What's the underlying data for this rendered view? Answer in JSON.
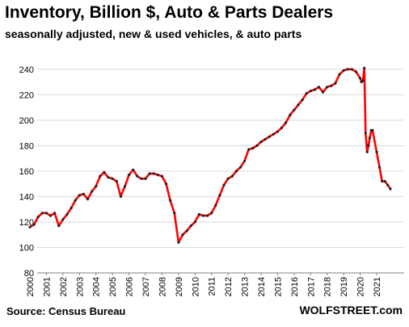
{
  "chart_data": {
    "type": "line",
    "title": "Inventory, Billion $, Auto & Parts Dealers",
    "subtitle": "seasonally adjusted, new & used vehicles, & auto parts",
    "xlabel": "",
    "ylabel": "",
    "xlim": [
      2000,
      2021.9
    ],
    "ylim": [
      80,
      250
    ],
    "y_ticks": [
      80,
      100,
      120,
      140,
      160,
      180,
      200,
      220,
      240
    ],
    "x_ticks": [
      "2000",
      "2001",
      "2002",
      "2003",
      "2004",
      "2005",
      "2006",
      "2007",
      "2008",
      "2009",
      "2010",
      "2011",
      "2012",
      "2013",
      "2014",
      "2015",
      "2016",
      "2017",
      "2018",
      "2019",
      "2020",
      "2021"
    ],
    "grid": true,
    "legend": "none",
    "line_color": "#ff0000",
    "marker_color": "#222222",
    "grid_color": "#d9d9d9",
    "series": [
      {
        "name": "",
        "x": [
          2000.0,
          2000.25,
          2000.5,
          2000.75,
          2001.0,
          2001.25,
          2001.5,
          2001.75,
          2002.0,
          2002.25,
          2002.5,
          2002.75,
          2003.0,
          2003.25,
          2003.5,
          2003.75,
          2004.0,
          2004.25,
          2004.5,
          2004.75,
          2005.0,
          2005.25,
          2005.5,
          2005.75,
          2006.0,
          2006.25,
          2006.5,
          2006.75,
          2007.0,
          2007.25,
          2007.5,
          2007.75,
          2008.0,
          2008.25,
          2008.5,
          2008.75,
          2009.0,
          2009.25,
          2009.5,
          2009.75,
          2010.0,
          2010.25,
          2010.5,
          2010.75,
          2011.0,
          2011.25,
          2011.5,
          2011.75,
          2012.0,
          2012.25,
          2012.5,
          2012.75,
          2013.0,
          2013.25,
          2013.5,
          2013.75,
          2014.0,
          2014.25,
          2014.5,
          2014.75,
          2015.0,
          2015.25,
          2015.5,
          2015.75,
          2016.0,
          2016.25,
          2016.5,
          2016.75,
          2017.0,
          2017.25,
          2017.5,
          2017.75,
          2018.0,
          2018.25,
          2018.5,
          2018.75,
          2019.0,
          2019.25,
          2019.5,
          2019.75,
          2020.0,
          2020.08,
          2020.17,
          2020.25,
          2020.33,
          2020.42,
          2020.5,
          2020.58,
          2020.67,
          2020.75,
          2021.0,
          2021.17,
          2021.33,
          2021.5,
          2021.67,
          2021.83
        ],
        "values": [
          116,
          118,
          124,
          127,
          127,
          125,
          127,
          117,
          122,
          126,
          131,
          137,
          141,
          142,
          138,
          144,
          148,
          156,
          159,
          155,
          154,
          152,
          140,
          148,
          157,
          161,
          156,
          154,
          154,
          158,
          158,
          157,
          156,
          150,
          137,
          127,
          104,
          110,
          113,
          117,
          120,
          126,
          125,
          125,
          127,
          133,
          141,
          149,
          154,
          156,
          160,
          163,
          168,
          177,
          178,
          180,
          183,
          185,
          187,
          189,
          191,
          194,
          198,
          204,
          208,
          212,
          216,
          221,
          223,
          224,
          226,
          222,
          226,
          227,
          229,
          236,
          239,
          240,
          240,
          238,
          233,
          230,
          231,
          241,
          190,
          175,
          180,
          186,
          192,
          192,
          175,
          163,
          152,
          152,
          149,
          146
        ]
      }
    ]
  },
  "footer": {
    "source": "Source: Census Bureau",
    "brand": "WOLFSTREET.com"
  }
}
